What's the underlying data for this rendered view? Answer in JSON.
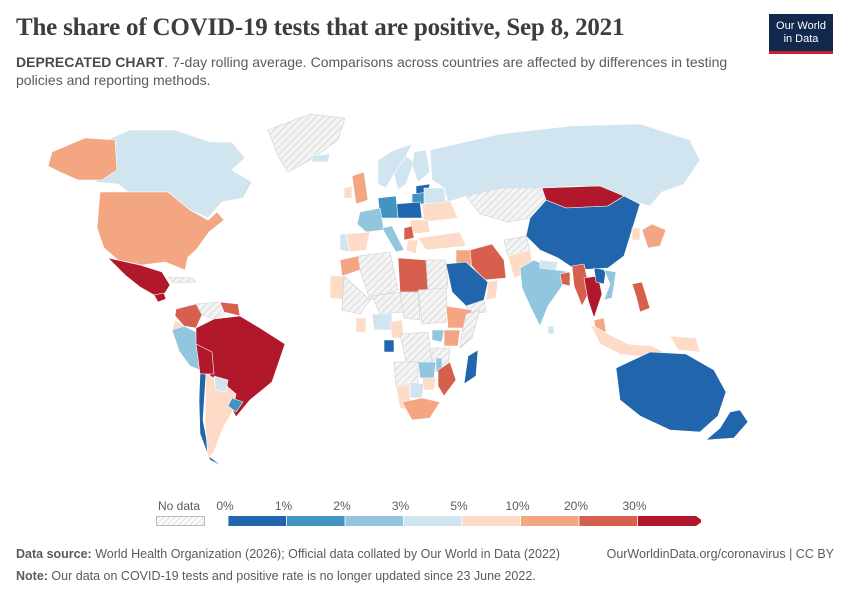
{
  "header": {
    "title": "The share of COVID-19 tests that are positive, Sep 8, 2021",
    "subtitle_bold": "DEPRECATED CHART",
    "subtitle_rest": ". 7-day rolling average. Comparisons across countries are affected by differences in testing policies and reporting methods."
  },
  "logo": {
    "line1": "Our World",
    "line2": "in Data"
  },
  "legend": {
    "no_data_label": "No data",
    "ticks": [
      "0%",
      "1%",
      "2%",
      "3%",
      "5%",
      "10%",
      "20%",
      "30%"
    ],
    "colors": [
      "#2166ac",
      "#4393c3",
      "#92c5de",
      "#d1e5f0",
      "#fddbc7",
      "#f4a582",
      "#d6604d",
      "#b2182b"
    ],
    "no_data_color": "#e8e8e8"
  },
  "map_data": {
    "regions": [
      {
        "name": "Canada",
        "bin": 3
      },
      {
        "name": "United States",
        "bin": 5
      },
      {
        "name": "Alaska",
        "bin": 5
      },
      {
        "name": "Greenland",
        "bin": -1
      },
      {
        "name": "Mexico",
        "bin": 7
      },
      {
        "name": "Guatemala",
        "bin": 7
      },
      {
        "name": "Cuba",
        "bin": -1
      },
      {
        "name": "Colombia",
        "bin": 6
      },
      {
        "name": "Venezuela",
        "bin": -1
      },
      {
        "name": "Ecuador",
        "bin": 4
      },
      {
        "name": "Peru",
        "bin": 2
      },
      {
        "name": "Brazil",
        "bin": 7
      },
      {
        "name": "Bolivia",
        "bin": 7
      },
      {
        "name": "Chile",
        "bin": 0
      },
      {
        "name": "Argentina",
        "bin": 4
      },
      {
        "name": "Paraguay",
        "bin": 3
      },
      {
        "name": "Uruguay",
        "bin": 1
      },
      {
        "name": "Guyana",
        "bin": 6
      },
      {
        "name": "Iceland",
        "bin": 3
      },
      {
        "name": "Norway",
        "bin": 3
      },
      {
        "name": "Sweden",
        "bin": 3
      },
      {
        "name": "Finland",
        "bin": 3
      },
      {
        "name": "Estonia",
        "bin": 0
      },
      {
        "name": "Latvia",
        "bin": 1
      },
      {
        "name": "Poland",
        "bin": 0
      },
      {
        "name": "Germany",
        "bin": 1
      },
      {
        "name": "France",
        "bin": 2
      },
      {
        "name": "United Kingdom",
        "bin": 5
      },
      {
        "name": "Ireland",
        "bin": 4
      },
      {
        "name": "Spain",
        "bin": 4
      },
      {
        "name": "Portugal",
        "bin": 3
      },
      {
        "name": "Italy",
        "bin": 2
      },
      {
        "name": "Ukraine",
        "bin": 4
      },
      {
        "name": "Belarus",
        "bin": 3
      },
      {
        "name": "Romania",
        "bin": 4
      },
      {
        "name": "Serbia",
        "bin": 6
      },
      {
        "name": "Greece",
        "bin": 4
      },
      {
        "name": "Turkey",
        "bin": 4
      },
      {
        "name": "Russia",
        "bin": 3
      },
      {
        "name": "Kazakhstan",
        "bin": -1
      },
      {
        "name": "Mongolia",
        "bin": 7
      },
      {
        "name": "China",
        "bin": 0
      },
      {
        "name": "Japan",
        "bin": 5
      },
      {
        "name": "South Korea",
        "bin": 4
      },
      {
        "name": "Iran",
        "bin": 6
      },
      {
        "name": "Iraq",
        "bin": 5
      },
      {
        "name": "Saudi Arabia",
        "bin": 0
      },
      {
        "name": "Yemen",
        "bin": -1
      },
      {
        "name": "Oman",
        "bin": 4
      },
      {
        "name": "Afghanistan",
        "bin": -1
      },
      {
        "name": "Pakistan",
        "bin": 4
      },
      {
        "name": "India",
        "bin": 2
      },
      {
        "name": "Nepal",
        "bin": 3
      },
      {
        "name": "Bangladesh",
        "bin": 6
      },
      {
        "name": "Myanmar",
        "bin": 6
      },
      {
        "name": "Thailand",
        "bin": 7
      },
      {
        "name": "Laos",
        "bin": 0
      },
      {
        "name": "Vietnam",
        "bin": 2
      },
      {
        "name": "Malaysia",
        "bin": 5
      },
      {
        "name": "Indonesia",
        "bin": 4
      },
      {
        "name": "Philippines",
        "bin": 6
      },
      {
        "name": "Papua New Guinea",
        "bin": 4
      },
      {
        "name": "Sri Lanka",
        "bin": 3
      },
      {
        "name": "Australia",
        "bin": 0
      },
      {
        "name": "New Zealand",
        "bin": 0
      },
      {
        "name": "Morocco",
        "bin": 5
      },
      {
        "name": "Algeria",
        "bin": -1
      },
      {
        "name": "Libya",
        "bin": 6
      },
      {
        "name": "Egypt",
        "bin": -1
      },
      {
        "name": "Mauritania",
        "bin": 4
      },
      {
        "name": "Mali",
        "bin": -1
      },
      {
        "name": "Niger",
        "bin": -1
      },
      {
        "name": "Chad",
        "bin": -1
      },
      {
        "name": "Sudan",
        "bin": -1
      },
      {
        "name": "Ethiopia",
        "bin": 5
      },
      {
        "name": "Somalia",
        "bin": -1
      },
      {
        "name": "Kenya",
        "bin": 5
      },
      {
        "name": "Uganda",
        "bin": 2
      },
      {
        "name": "Nigeria",
        "bin": 3
      },
      {
        "name": "Cameroon",
        "bin": 4
      },
      {
        "name": "Ghana",
        "bin": 4
      },
      {
        "name": "Gabon",
        "bin": 0
      },
      {
        "name": "DR Congo",
        "bin": -1
      },
      {
        "name": "Tanzania",
        "bin": -1
      },
      {
        "name": "Angola",
        "bin": -1
      },
      {
        "name": "Zambia",
        "bin": 2
      },
      {
        "name": "Malawi",
        "bin": 2
      },
      {
        "name": "Mozambique",
        "bin": 6
      },
      {
        "name": "Zimbabwe",
        "bin": 4
      },
      {
        "name": "Botswana",
        "bin": 3
      },
      {
        "name": "Namibia",
        "bin": 4
      },
      {
        "name": "South Africa",
        "bin": 5
      },
      {
        "name": "Madagascar",
        "bin": 0
      }
    ]
  },
  "footer": {
    "source_label": "Data source:",
    "source_text": " World Health Organization (2026); Official data collated by Our World in Data (2022)",
    "note_label": "Note:",
    "note_text": " Our data on COVID-19 tests and positive rate is no longer updated since 23 June 2022.",
    "link": "OurWorldinData.org/coronavirus | CC BY"
  }
}
